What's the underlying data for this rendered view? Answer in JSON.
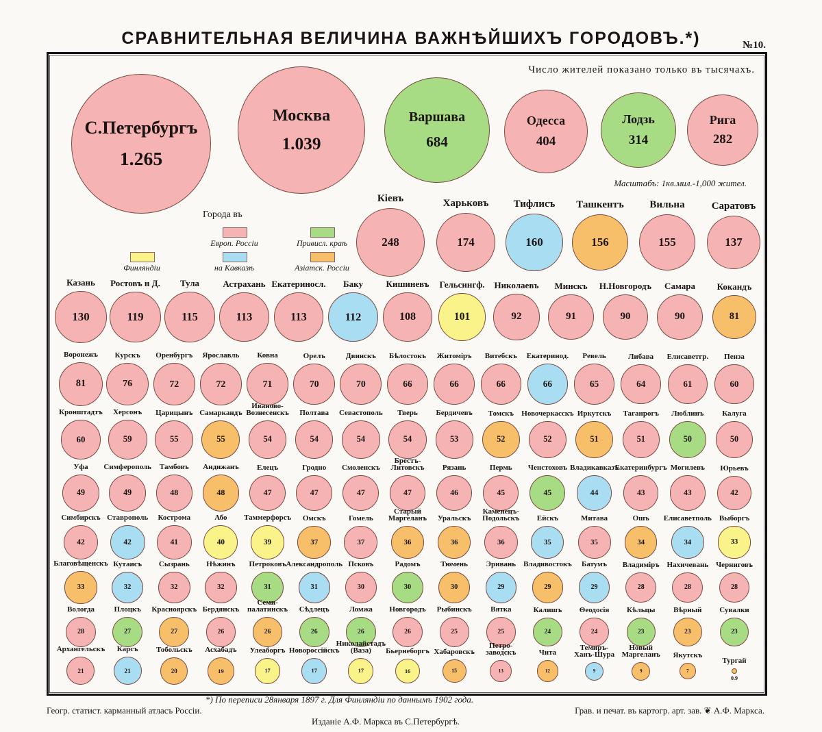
{
  "title": "СРАВНИТЕЛЬНАЯ ВЕЛИЧИНА ВАЖНѢЙШИХЪ ГОРОДОВЪ.*)",
  "plate_number": "№10.",
  "note": "Число жителей показано только въ тысячахъ.",
  "scale": "Масштабъ: 1кв.мил.-1,000 жител.",
  "legend": {
    "heading": "Города въ",
    "items": [
      {
        "key": "e",
        "label": "Европ. Россiи",
        "color": "#f6b3b3"
      },
      {
        "key": "p",
        "label": "Привисл. краѣ",
        "color": "#a8dc84"
      },
      {
        "key": "f",
        "label": "Финляндiи",
        "color": "#f9f38a"
      },
      {
        "key": "k",
        "label": "на Кавказѣ",
        "color": "#a9def2"
      },
      {
        "key": "a",
        "label": "Азiатск. Россiи",
        "color": "#f7bf6a"
      }
    ]
  },
  "footer": {
    "footnote": "*) По переписи 28января 1897 г. Для Финляндiи по даннымъ 1902 года.",
    "left": "Геогр. статист. карманный атласъ Россiи.",
    "right": "Грав. и печат. въ картогр. арт. зав. ❦ А.Ф. Маркса.",
    "center": "Изданiе А.Ф. Маркса въ С.Петербургѣ."
  },
  "chart_data": {
    "type": "bubble",
    "title": "СРАВНИТЕЛЬНАЯ ВЕЛИЧИНА ВАЖНѢЙШИХЪ ГОРОДОВЪ",
    "unit": "thousand inhabitants",
    "rows": [
      [
        {
          "name": "С.Петербургъ",
          "label": "1.265",
          "value": 1265,
          "r": "e"
        },
        {
          "name": "Москва",
          "label": "1.039",
          "value": 1039,
          "r": "e"
        },
        {
          "name": "Варшава",
          "label": "684",
          "value": 684,
          "r": "p"
        },
        {
          "name": "Одесса",
          "label": "404",
          "value": 404,
          "r": "e"
        },
        {
          "name": "Лодзь",
          "label": "314",
          "value": 314,
          "r": "p"
        },
        {
          "name": "Рига",
          "label": "282",
          "value": 282,
          "r": "e"
        }
      ],
      [
        {
          "name": "Кiевъ",
          "label": "248",
          "value": 248,
          "r": "e"
        },
        {
          "name": "Харьковъ",
          "label": "174",
          "value": 174,
          "r": "e"
        },
        {
          "name": "Тифлисъ",
          "label": "160",
          "value": 160,
          "r": "k"
        },
        {
          "name": "Ташкентъ",
          "label": "156",
          "value": 156,
          "r": "a"
        },
        {
          "name": "Вильна",
          "label": "155",
          "value": 155,
          "r": "e"
        },
        {
          "name": "Саратовъ",
          "label": "137",
          "value": 137,
          "r": "e"
        }
      ],
      [
        {
          "name": "Казань",
          "label": "130",
          "value": 130,
          "r": "e"
        },
        {
          "name": "Ростовъ н Д.",
          "label": "119",
          "value": 119,
          "r": "e"
        },
        {
          "name": "Тула",
          "label": "115",
          "value": 115,
          "r": "e"
        },
        {
          "name": "Астрахань",
          "label": "113",
          "value": 113,
          "r": "e"
        },
        {
          "name": "Екатериносл.",
          "label": "113",
          "value": 113,
          "r": "e"
        },
        {
          "name": "Баку",
          "label": "112",
          "value": 112,
          "r": "k"
        },
        {
          "name": "Кишиневъ",
          "label": "108",
          "value": 108,
          "r": "e"
        },
        {
          "name": "Гельсингф.",
          "label": "101",
          "value": 101,
          "r": "f"
        },
        {
          "name": "Николаевъ",
          "label": "92",
          "value": 92,
          "r": "e"
        },
        {
          "name": "Минскъ",
          "label": "91",
          "value": 91,
          "r": "e"
        },
        {
          "name": "Н.Новгородъ",
          "label": "90",
          "value": 90,
          "r": "e"
        },
        {
          "name": "Самара",
          "label": "90",
          "value": 90,
          "r": "e"
        },
        {
          "name": "Кокандъ",
          "label": "81",
          "value": 81,
          "r": "a"
        }
      ],
      [
        {
          "name": "Воронежъ",
          "label": "81",
          "value": 81,
          "r": "e"
        },
        {
          "name": "Курскъ",
          "label": "76",
          "value": 76,
          "r": "e"
        },
        {
          "name": "Оренбургъ",
          "label": "72",
          "value": 72,
          "r": "e"
        },
        {
          "name": "Ярославль",
          "label": "72",
          "value": 72,
          "r": "e"
        },
        {
          "name": "Ковна",
          "label": "71",
          "value": 71,
          "r": "e"
        },
        {
          "name": "Орелъ",
          "label": "70",
          "value": 70,
          "r": "e"
        },
        {
          "name": "Двинскъ",
          "label": "70",
          "value": 70,
          "r": "e"
        },
        {
          "name": "Бѣлостокъ",
          "label": "66",
          "value": 66,
          "r": "e"
        },
        {
          "name": "Житомiръ",
          "label": "66",
          "value": 66,
          "r": "e"
        },
        {
          "name": "Витебскъ",
          "label": "66",
          "value": 66,
          "r": "e"
        },
        {
          "name": "Екатеринод.",
          "label": "66",
          "value": 66,
          "r": "k"
        },
        {
          "name": "Ревель",
          "label": "65",
          "value": 65,
          "r": "e"
        },
        {
          "name": "Либава",
          "label": "64",
          "value": 64,
          "r": "e"
        },
        {
          "name": "Елисаветгр.",
          "label": "61",
          "value": 61,
          "r": "e"
        },
        {
          "name": "Пенза",
          "label": "60",
          "value": 60,
          "r": "e"
        }
      ],
      [
        {
          "name": "Кронштадтъ",
          "label": "60",
          "value": 60,
          "r": "e"
        },
        {
          "name": "Херсонъ",
          "label": "59",
          "value": 59,
          "r": "e"
        },
        {
          "name": "Царицынъ",
          "label": "55",
          "value": 55,
          "r": "e"
        },
        {
          "name": "Самаркандъ",
          "label": "55",
          "value": 55,
          "r": "a"
        },
        {
          "name": "Иваново-\nВознесенскъ",
          "label": "54",
          "value": 54,
          "r": "e"
        },
        {
          "name": "Полтава",
          "label": "54",
          "value": 54,
          "r": "e"
        },
        {
          "name": "Севастополь",
          "label": "54",
          "value": 54,
          "r": "e"
        },
        {
          "name": "Тверь",
          "label": "54",
          "value": 54,
          "r": "e"
        },
        {
          "name": "Бердичевъ",
          "label": "53",
          "value": 53,
          "r": "e"
        },
        {
          "name": "Томскъ",
          "label": "52",
          "value": 52,
          "r": "a"
        },
        {
          "name": "Новочеркасскъ",
          "label": "52",
          "value": 52,
          "r": "e"
        },
        {
          "name": "Иркутскъ",
          "label": "51",
          "value": 51,
          "r": "a"
        },
        {
          "name": "Таганрогъ",
          "label": "51",
          "value": 51,
          "r": "e"
        },
        {
          "name": "Люблинъ",
          "label": "50",
          "value": 50,
          "r": "p"
        },
        {
          "name": "Калуга",
          "label": "50",
          "value": 50,
          "r": "e"
        }
      ],
      [
        {
          "name": "Уфа",
          "label": "49",
          "value": 49,
          "r": "e"
        },
        {
          "name": "Симферополь",
          "label": "49",
          "value": 49,
          "r": "e"
        },
        {
          "name": "Тамбовъ",
          "label": "48",
          "value": 48,
          "r": "e"
        },
        {
          "name": "Андижанъ",
          "label": "48",
          "value": 48,
          "r": "a"
        },
        {
          "name": "Елецъ",
          "label": "47",
          "value": 47,
          "r": "e"
        },
        {
          "name": "Гродно",
          "label": "47",
          "value": 47,
          "r": "e"
        },
        {
          "name": "Смоленскъ",
          "label": "47",
          "value": 47,
          "r": "e"
        },
        {
          "name": "Брестъ-\nЛитовскъ",
          "label": "47",
          "value": 47,
          "r": "e"
        },
        {
          "name": "Рязань",
          "label": "46",
          "value": 46,
          "r": "e"
        },
        {
          "name": "Пермь",
          "label": "45",
          "value": 45,
          "r": "e"
        },
        {
          "name": "Ченстоховъ",
          "label": "45",
          "value": 45,
          "r": "p"
        },
        {
          "name": "Владикавказъ",
          "label": "44",
          "value": 44,
          "r": "k"
        },
        {
          "name": "Екатеринбургъ",
          "label": "43",
          "value": 43,
          "r": "e"
        },
        {
          "name": "Могилевъ",
          "label": "43",
          "value": 43,
          "r": "e"
        },
        {
          "name": "Юрьевъ",
          "label": "42",
          "value": 42,
          "r": "e"
        }
      ],
      [
        {
          "name": "Симбирскъ",
          "label": "42",
          "value": 42,
          "r": "e"
        },
        {
          "name": "Ставрополь",
          "label": "42",
          "value": 42,
          "r": "k"
        },
        {
          "name": "Кострома",
          "label": "41",
          "value": 41,
          "r": "e"
        },
        {
          "name": "Або",
          "label": "40",
          "value": 40,
          "r": "f"
        },
        {
          "name": "Таммерфорсъ",
          "label": "39",
          "value": 39,
          "r": "f"
        },
        {
          "name": "Омскъ",
          "label": "37",
          "value": 37,
          "r": "a"
        },
        {
          "name": "Гомель",
          "label": "37",
          "value": 37,
          "r": "e"
        },
        {
          "name": "Старый\nМаргеланъ",
          "label": "36",
          "value": 36,
          "r": "a"
        },
        {
          "name": "Уральскъ",
          "label": "36",
          "value": 36,
          "r": "a"
        },
        {
          "name": "Каменецъ-\nПодольскъ",
          "label": "36",
          "value": 36,
          "r": "e"
        },
        {
          "name": "Ейскъ",
          "label": "35",
          "value": 35,
          "r": "k"
        },
        {
          "name": "Митава",
          "label": "35",
          "value": 35,
          "r": "e"
        },
        {
          "name": "Ошъ",
          "label": "34",
          "value": 34,
          "r": "a"
        },
        {
          "name": "Елисаветполь",
          "label": "34",
          "value": 34,
          "r": "k"
        },
        {
          "name": "Выборгъ",
          "label": "33",
          "value": 33,
          "r": "f"
        }
      ],
      [
        {
          "name": "Благовѣщенскъ",
          "label": "33",
          "value": 33,
          "r": "a"
        },
        {
          "name": "Кутаисъ",
          "label": "32",
          "value": 32,
          "r": "k"
        },
        {
          "name": "Сызрань",
          "label": "32",
          "value": 32,
          "r": "e"
        },
        {
          "name": "Нѣжинъ",
          "label": "32",
          "value": 32,
          "r": "e"
        },
        {
          "name": "Петроковъ",
          "label": "31",
          "value": 31,
          "r": "p"
        },
        {
          "name": "Александрополь",
          "label": "31",
          "value": 31,
          "r": "k"
        },
        {
          "name": "Псковъ",
          "label": "30",
          "value": 30,
          "r": "e"
        },
        {
          "name": "Радомъ",
          "label": "30",
          "value": 30,
          "r": "p"
        },
        {
          "name": "Тюмень",
          "label": "30",
          "value": 30,
          "r": "a"
        },
        {
          "name": "Эривань",
          "label": "29",
          "value": 29,
          "r": "k"
        },
        {
          "name": "Владивостокъ",
          "label": "29",
          "value": 29,
          "r": "a"
        },
        {
          "name": "Батумъ",
          "label": "29",
          "value": 29,
          "r": "k"
        },
        {
          "name": "Владимiръ",
          "label": "28",
          "value": 28,
          "r": "e"
        },
        {
          "name": "Нахичевань",
          "label": "28",
          "value": 28,
          "r": "e"
        },
        {
          "name": "Черниговъ",
          "label": "28",
          "value": 28,
          "r": "e"
        }
      ],
      [
        {
          "name": "Вологда",
          "label": "28",
          "value": 28,
          "r": "e"
        },
        {
          "name": "Плоцкъ",
          "label": "27",
          "value": 27,
          "r": "p"
        },
        {
          "name": "Красноярскъ",
          "label": "27",
          "value": 27,
          "r": "a"
        },
        {
          "name": "Бердянскъ",
          "label": "26",
          "value": 26,
          "r": "e"
        },
        {
          "name": "Семи-\nпалатинскъ",
          "label": "26",
          "value": 26,
          "r": "a"
        },
        {
          "name": "Сѣдлецъ",
          "label": "26",
          "value": 26,
          "r": "p"
        },
        {
          "name": "Ломжа",
          "label": "26",
          "value": 26,
          "r": "p"
        },
        {
          "name": "Новгородъ",
          "label": "26",
          "value": 26,
          "r": "e"
        },
        {
          "name": "Рыбинскъ",
          "label": "25",
          "value": 25,
          "r": "e"
        },
        {
          "name": "Вятка",
          "label": "25",
          "value": 25,
          "r": "e"
        },
        {
          "name": "Калишъ",
          "label": "24",
          "value": 24,
          "r": "p"
        },
        {
          "name": "Θеодосiя",
          "label": "24",
          "value": 24,
          "r": "e"
        },
        {
          "name": "Кѣльцы",
          "label": "23",
          "value": 23,
          "r": "p"
        },
        {
          "name": "Вѣрный",
          "label": "23",
          "value": 23,
          "r": "a"
        },
        {
          "name": "Сувалки",
          "label": "23",
          "value": 23,
          "r": "p"
        }
      ],
      [
        {
          "name": "Архангельскъ",
          "label": "21",
          "value": 21,
          "r": "e"
        },
        {
          "name": "Карсъ",
          "label": "21",
          "value": 21,
          "r": "k"
        },
        {
          "name": "Тобольскъ",
          "label": "20",
          "value": 20,
          "r": "a"
        },
        {
          "name": "Асхабадъ",
          "label": "19",
          "value": 19,
          "r": "a"
        },
        {
          "name": "Улеаборгъ",
          "label": "17",
          "value": 17,
          "r": "f"
        },
        {
          "name": "Новороссiйскъ",
          "label": "17",
          "value": 17,
          "r": "k"
        },
        {
          "name": "Николайстадъ\n(Ваза)",
          "label": "17",
          "value": 17,
          "r": "f"
        },
        {
          "name": "Бьернеборгъ",
          "label": "16",
          "value": 16,
          "r": "f"
        },
        {
          "name": "Хабаровскъ",
          "label": "15",
          "value": 15,
          "r": "a"
        },
        {
          "name": "Петро-\nзаводскъ",
          "label": "13",
          "value": 13,
          "r": "e"
        },
        {
          "name": "Чита",
          "label": "12",
          "value": 12,
          "r": "a"
        },
        {
          "name": "Темиръ-\nХанъ-Шура",
          "label": "9",
          "value": 9,
          "r": "k"
        },
        {
          "name": "Новый\nМаргеланъ",
          "label": "9",
          "value": 9,
          "r": "a"
        },
        {
          "name": "Якутскъ",
          "label": "7",
          "value": 7,
          "r": "a"
        },
        {
          "name": "Тургай",
          "label": "0.9",
          "value": 0.9,
          "r": "a"
        }
      ]
    ]
  }
}
